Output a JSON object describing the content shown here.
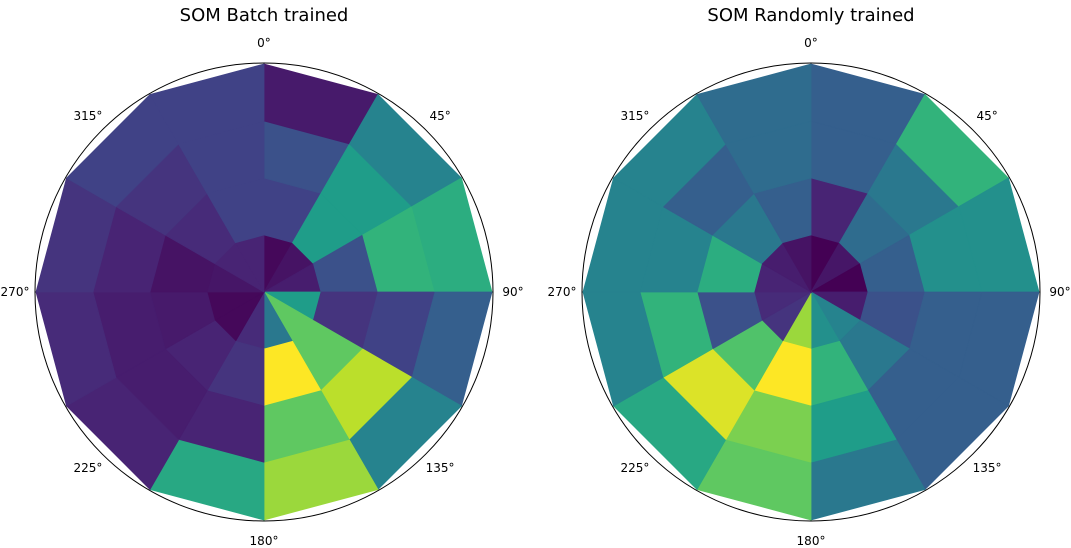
{
  "chart_data": [
    {
      "type": "heatmap",
      "title": "SOM Batch trained",
      "projection": "polar",
      "theta_labels": [
        "0°",
        "45°",
        "90°",
        "135°",
        "180°",
        "225°",
        "270°",
        "315°"
      ],
      "n_sectors": 12,
      "n_rings": 4,
      "colormap": "viridis",
      "cells": [
        [
          0.02,
          0.05,
          0.08,
          0.55,
          0.75,
          0.4,
          0.12,
          0.02,
          0.02,
          0.06,
          0.1,
          0.1
        ],
        [
          0.2,
          0.55,
          0.25,
          0.15,
          0.75,
          1.0,
          0.15,
          0.1,
          0.07,
          0.05,
          0.12,
          0.2
        ],
        [
          0.25,
          0.55,
          0.65,
          0.2,
          0.9,
          0.75,
          0.1,
          0.08,
          0.08,
          0.1,
          0.15,
          0.2
        ],
        [
          0.07,
          0.45,
          0.62,
          0.3,
          0.45,
          0.85,
          0.6,
          0.1,
          0.12,
          0.15,
          0.2,
          0.2
        ]
      ]
    },
    {
      "type": "heatmap",
      "title": "SOM Randomly trained",
      "projection": "polar",
      "theta_labels": [
        "0°",
        "45°",
        "90°",
        "135°",
        "180°",
        "225°",
        "270°",
        "315°"
      ],
      "n_sectors": 12,
      "n_rings": 4,
      "colormap": "viridis",
      "cells": [
        [
          0.0,
          0.06,
          0.0,
          0.08,
          0.45,
          0.5,
          0.85,
          0.15,
          0.12,
          0.1,
          0.08,
          0.05
        ],
        [
          0.1,
          0.35,
          0.3,
          0.25,
          0.4,
          0.65,
          1.0,
          0.72,
          0.25,
          0.62,
          0.4,
          0.3
        ],
        [
          0.3,
          0.4,
          0.5,
          0.3,
          0.3,
          0.55,
          0.8,
          0.95,
          0.65,
          0.45,
          0.3,
          0.35
        ],
        [
          0.3,
          0.65,
          0.5,
          0.3,
          0.3,
          0.4,
          0.75,
          0.6,
          0.45,
          0.45,
          0.45,
          0.35
        ]
      ]
    }
  ]
}
